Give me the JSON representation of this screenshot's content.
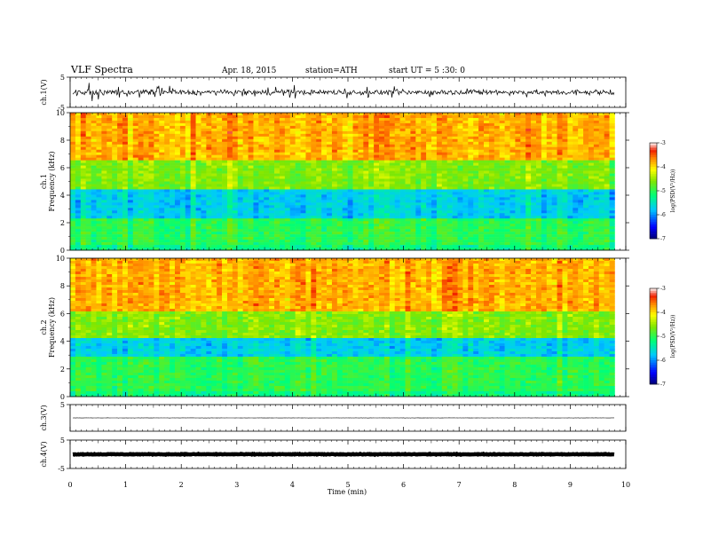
{
  "header": {
    "title": "VLF Spectra",
    "date": "Apr. 18, 2015",
    "station": "station=ATH",
    "start": "start UT =  5 :30: 0"
  },
  "chart_data": [
    {
      "type": "line",
      "panel": "ch1-waveform",
      "ylabel": "ch.1(V)",
      "ylim": [
        -5,
        5
      ],
      "ytick_labels": [
        "5",
        "-5"
      ],
      "xlim": [
        0,
        10
      ],
      "signal": "dense noisy trace centred near 0 V, excursions up to about ±2.5 V"
    },
    {
      "type": "heatmap",
      "panel": "ch1-spectrogram",
      "ylabel_line1": "ch.1",
      "ylabel_line2": "Frequency (kHz)",
      "ylim": [
        0,
        10
      ],
      "ytick_labels": [
        "0",
        "2",
        "4",
        "6",
        "8",
        "10"
      ],
      "xlim": [
        0,
        10
      ],
      "data_extent_min": 9.8,
      "colorbar": {
        "label": "log(PSD(V²/Hz))",
        "range": [
          -7,
          -3
        ],
        "tick_labels": [
          "-3",
          "-4",
          "-5",
          "-6",
          "-7"
        ]
      },
      "bands_log_psd": [
        {
          "freq_khz": [
            0,
            0.4
          ],
          "value": -5.2
        },
        {
          "freq_khz": [
            0.4,
            2.4
          ],
          "value": -5.0
        },
        {
          "freq_khz": [
            2.4,
            4.5
          ],
          "value": -5.7
        },
        {
          "freq_khz": [
            4.5,
            6.5
          ],
          "value": -4.6
        },
        {
          "freq_khz": [
            6.5,
            10
          ],
          "value": -3.8
        }
      ]
    },
    {
      "type": "heatmap",
      "panel": "ch2-spectrogram",
      "ylabel_line1": "ch.2",
      "ylabel_line2": "Frequency (kHz)",
      "ylim": [
        0,
        10
      ],
      "ytick_labels": [
        "0",
        "2",
        "4",
        "6",
        "8",
        "10"
      ],
      "xlim": [
        0,
        10
      ],
      "data_extent_min": 9.8,
      "colorbar": {
        "label": "log(PSD(V²/Hz))",
        "range": [
          -7,
          -3
        ],
        "tick_labels": [
          "-3",
          "-4",
          "-5",
          "-6",
          "-7"
        ]
      },
      "bands_log_psd": [
        {
          "freq_khz": [
            0,
            0.4
          ],
          "value": -5.2
        },
        {
          "freq_khz": [
            0.4,
            2.8
          ],
          "value": -5.0
        },
        {
          "freq_khz": [
            2.8,
            4.2
          ],
          "value": -5.7
        },
        {
          "freq_khz": [
            4.2,
            6.2
          ],
          "value": -4.6
        },
        {
          "freq_khz": [
            6.2,
            10
          ],
          "value": -3.8
        }
      ]
    },
    {
      "type": "line",
      "panel": "ch3-waveform",
      "ylabel": "ch.3(V)",
      "ylim": [
        -5,
        5
      ],
      "ytick_labels": [
        "5"
      ],
      "xlim": [
        0,
        10
      ],
      "signal": "nearly flat trace near 0 V"
    },
    {
      "type": "line",
      "panel": "ch4-waveform",
      "ylabel": "ch.4(V)",
      "ylim": [
        -5,
        5
      ],
      "ytick_labels": [
        "5",
        "-5"
      ],
      "xlim": [
        0,
        10
      ],
      "signal": "thick flat trace near 0 V"
    }
  ],
  "x_axis": {
    "label": "Time (min)",
    "range": [
      0,
      10
    ],
    "tick_labels": [
      "0",
      "1",
      "2",
      "3",
      "4",
      "5",
      "6",
      "7",
      "8",
      "9",
      "10"
    ]
  }
}
